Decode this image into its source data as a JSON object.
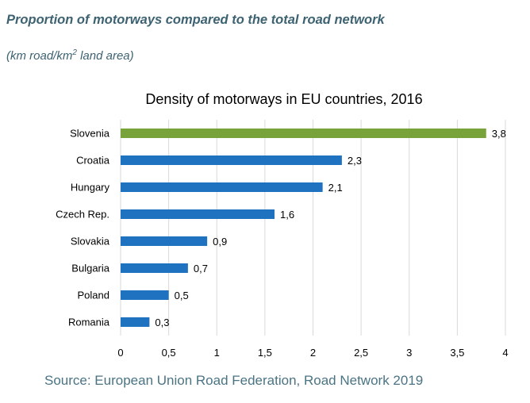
{
  "header": {
    "title": "Proportion of motorways compared to the total road network",
    "unit_prefix": "(km road/km",
    "unit_sup": "2",
    "unit_suffix": " land area)"
  },
  "chart_data": {
    "type": "bar",
    "orientation": "horizontal",
    "title": "Density of motorways in EU countries, 2016",
    "categories": [
      "Slovenia",
      "Croatia",
      "Hungary",
      "Czech Rep.",
      "Slovakia",
      "Bulgaria",
      "Poland",
      "Romania"
    ],
    "values": [
      3.8,
      2.3,
      2.1,
      1.6,
      0.9,
      0.7,
      0.5,
      0.3
    ],
    "value_labels": [
      "3,8",
      "2,3",
      "2,1",
      "1,6",
      "0,9",
      "0,7",
      "0,5",
      "0,3"
    ],
    "xlim": [
      0,
      4
    ],
    "x_ticks": [
      0,
      0.5,
      1,
      1.5,
      2,
      2.5,
      3,
      3.5,
      4
    ],
    "x_tick_labels": [
      "0",
      "0,5",
      "1",
      "1,5",
      "2",
      "2,5",
      "3",
      "3,5",
      "4"
    ],
    "grid": "vertical",
    "legend": "none",
    "colors": {
      "highlight": "#77a33a",
      "bar": "#1f72bf",
      "grid": "#d9d9d9"
    },
    "highlight_index": 0
  },
  "footer": {
    "source": "Source: European Union Road Federation, Road Network 2019"
  }
}
